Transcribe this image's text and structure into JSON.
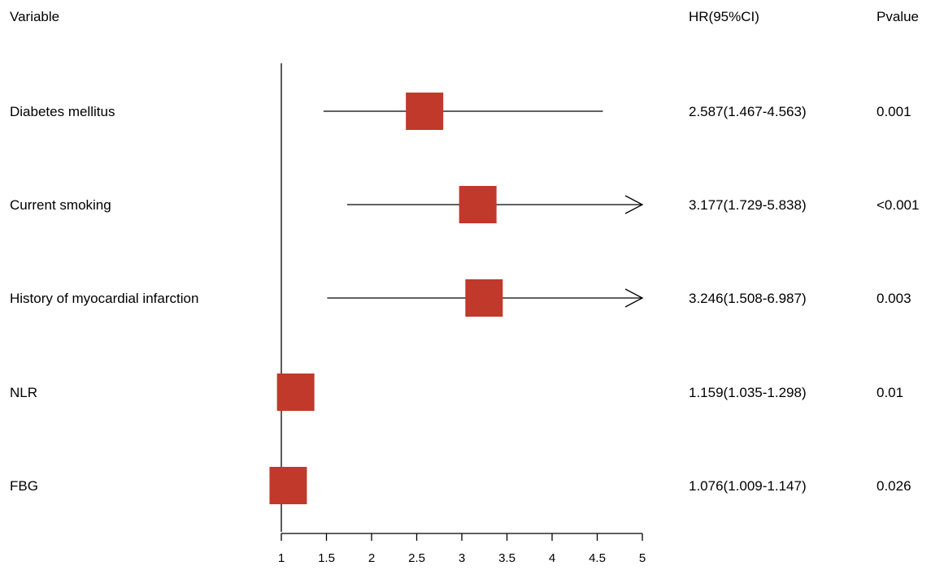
{
  "headers": {
    "variable": "Variable",
    "hr": "HR(95%CI)",
    "pvalue": "Pvalue"
  },
  "chart_data": {
    "type": "forest",
    "xlim": [
      1,
      5
    ],
    "xticks": [
      "1",
      "1.5",
      "2",
      "2.5",
      "3",
      "3.5",
      "4",
      "4.5",
      "5"
    ],
    "reference_line": 1,
    "marker_color": "#c0392b",
    "rows": [
      {
        "variable": "Diabetes mellitus",
        "hr": 2.587,
        "lower": 1.467,
        "upper": 4.563,
        "hr_text": "2.587(1.467-4.563)",
        "pvalue": "0.001"
      },
      {
        "variable": "Current smoking",
        "hr": 3.177,
        "lower": 1.729,
        "upper": 5.838,
        "hr_text": "3.177(1.729-5.838)",
        "pvalue": "<0.001"
      },
      {
        "variable": "History of myocardial infarction",
        "hr": 3.246,
        "lower": 1.508,
        "upper": 6.987,
        "hr_text": "3.246(1.508-6.987)",
        "pvalue": "0.003"
      },
      {
        "variable": "NLR",
        "hr": 1.159,
        "lower": 1.035,
        "upper": 1.298,
        "hr_text": "1.159(1.035-1.298)",
        "pvalue": "0.01"
      },
      {
        "variable": "FBG",
        "hr": 1.076,
        "lower": 1.009,
        "upper": 1.147,
        "hr_text": "1.076(1.009-1.147)",
        "pvalue": "0.026"
      }
    ]
  }
}
